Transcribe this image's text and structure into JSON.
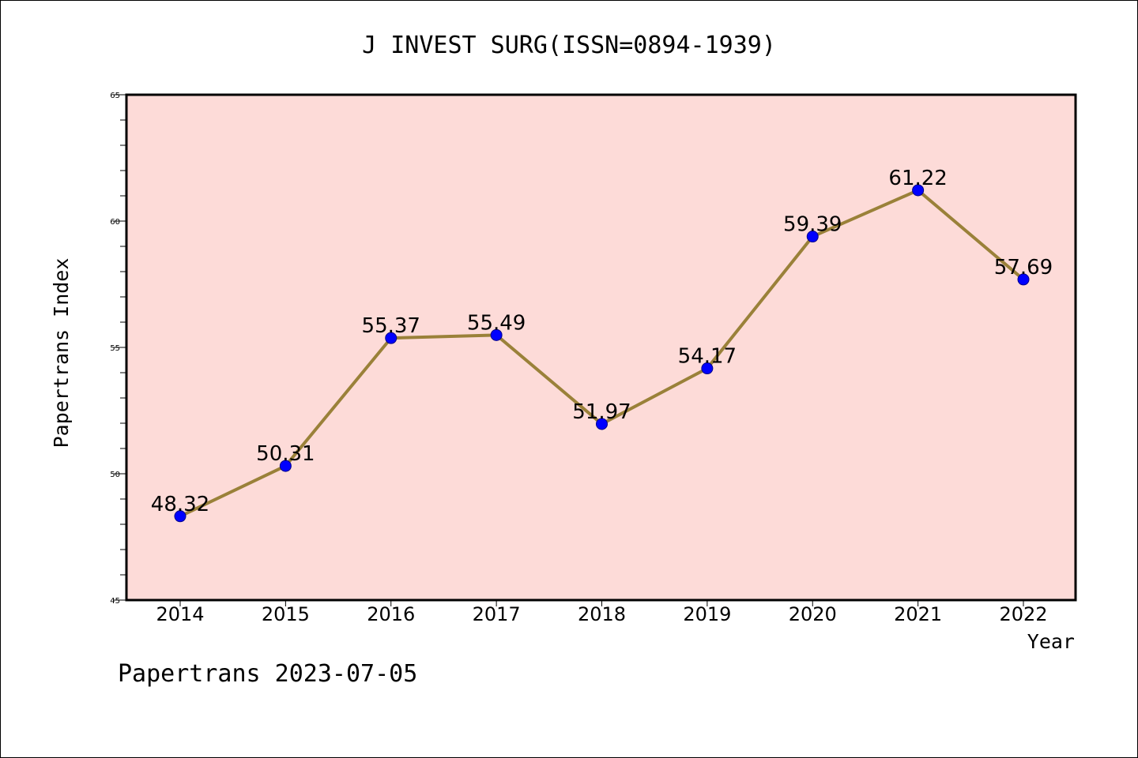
{
  "chart_data": {
    "type": "line",
    "title": "J INVEST SURG(ISSN=0894-1939)",
    "xlabel": "Year",
    "ylabel": "Papertrans Index",
    "categories": [
      "2014",
      "2015",
      "2016",
      "2017",
      "2018",
      "2019",
      "2020",
      "2021",
      "2022"
    ],
    "series": [
      {
        "values": [
          48.32,
          50.31,
          55.37,
          55.49,
          51.97,
          54.17,
          59.39,
          61.22,
          57.69
        ],
        "labels": [
          "48.32",
          "50.31",
          "55.37",
          "55.49",
          "51.97",
          "54.17",
          "59.39",
          "61.22",
          "57.69"
        ]
      }
    ],
    "ylim": [
      45,
      65
    ],
    "yticks": [
      45,
      50,
      55,
      60,
      65
    ],
    "ytick_labels": [
      "45",
      "50",
      "55",
      "60",
      "65"
    ],
    "y_minor_step": 1,
    "grid": false,
    "legend": "none",
    "colors": {
      "plot_background": "#fddbd8",
      "line": "#9a8139",
      "marker": "#0000ff",
      "marker_edge": "#00008b"
    }
  },
  "footer": {
    "text": "Papertrans 2023-07-05"
  }
}
